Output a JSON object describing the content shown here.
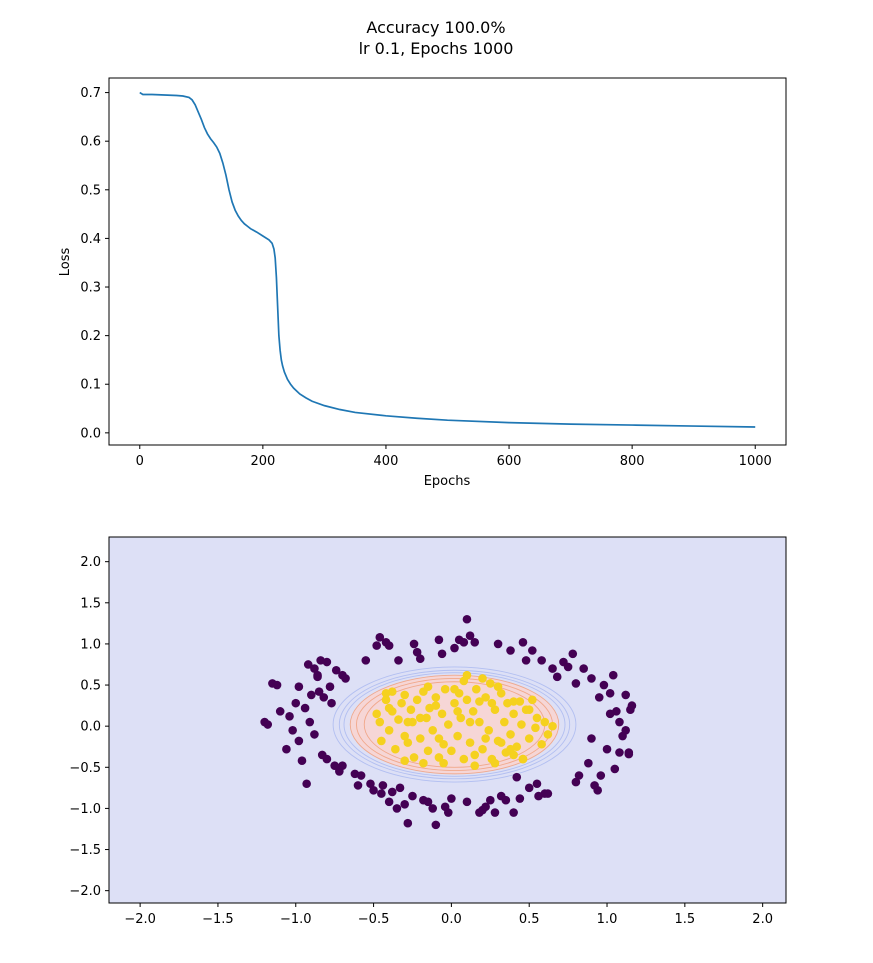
{
  "figure": {
    "title_line1": "Accuracy 100.0%",
    "title_line2": "lr 0.1, Epochs 1000"
  },
  "colors": {
    "loss_line": "#1f77b4",
    "background_region": "#dde0f6",
    "inner_region": "#f6d6d6",
    "contour_blue": "#aab9f0",
    "contour_red": "#f0a07e",
    "class0": "#440154",
    "class1": "#f5d11f"
  },
  "chart_data": [
    {
      "type": "line",
      "xlabel": "Epochs",
      "ylabel": "Loss",
      "xlim": [
        -50,
        1050
      ],
      "ylim": [
        -0.025,
        0.73
      ],
      "xticks": [
        0,
        200,
        400,
        600,
        800,
        1000
      ],
      "yticks": [
        0.0,
        0.1,
        0.2,
        0.3,
        0.4,
        0.5,
        0.6,
        0.7
      ],
      "grid": false,
      "series": [
        {
          "x": [
            0,
            5,
            20,
            40,
            60,
            70,
            80,
            85,
            90,
            95,
            100,
            105,
            110,
            115,
            120,
            125,
            130,
            135,
            140,
            145,
            150,
            155,
            160,
            165,
            170,
            175,
            180,
            190,
            200,
            210,
            215,
            218,
            220,
            222,
            224,
            226,
            228,
            230,
            232,
            235,
            240,
            245,
            250,
            260,
            270,
            280,
            300,
            325,
            350,
            400,
            450,
            500,
            600,
            700,
            800,
            900,
            1000
          ],
          "values": [
            0.7,
            0.696,
            0.696,
            0.695,
            0.694,
            0.693,
            0.69,
            0.685,
            0.675,
            0.66,
            0.645,
            0.628,
            0.615,
            0.605,
            0.597,
            0.588,
            0.575,
            0.555,
            0.53,
            0.5,
            0.475,
            0.458,
            0.446,
            0.437,
            0.43,
            0.425,
            0.42,
            0.413,
            0.405,
            0.397,
            0.39,
            0.378,
            0.36,
            0.32,
            0.26,
            0.2,
            0.17,
            0.15,
            0.138,
            0.125,
            0.11,
            0.1,
            0.092,
            0.08,
            0.072,
            0.065,
            0.056,
            0.048,
            0.042,
            0.035,
            0.03,
            0.026,
            0.021,
            0.018,
            0.016,
            0.014,
            0.012
          ]
        }
      ]
    },
    {
      "type": "scatter",
      "xlim": [
        -2.2,
        2.15
      ],
      "ylim": [
        -2.15,
        2.3
      ],
      "xticks": [
        -2.0,
        -1.5,
        -1.0,
        -0.5,
        0.0,
        0.5,
        1.0,
        1.5,
        2.0
      ],
      "yticks": [
        -2.0,
        -1.5,
        -1.0,
        -0.5,
        0.0,
        0.5,
        1.0,
        1.5,
        2.0
      ],
      "grid": false,
      "decision_boundary": {
        "center": [
          0.02,
          0.02
        ],
        "contours": [
          {
            "rx": 0.78,
            "ry": 0.7,
            "level": "outer"
          },
          {
            "rx": 0.74,
            "ry": 0.66,
            "level": "outer"
          },
          {
            "rx": 0.71,
            "ry": 0.63,
            "level": "outer"
          },
          {
            "rx": 0.67,
            "ry": 0.6,
            "level": "inner"
          },
          {
            "rx": 0.63,
            "ry": 0.56,
            "level": "inner"
          },
          {
            "rx": 0.58,
            "ry": 0.52,
            "level": "inner"
          }
        ]
      },
      "series": [
        {
          "label": 0,
          "points": [
            [
              -1.2,
              0.05
            ],
            [
              -1.15,
              0.52
            ],
            [
              -1.12,
              0.5
            ],
            [
              -1.1,
              0.18
            ],
            [
              -1.06,
              -0.28
            ],
            [
              -1.04,
              0.12
            ],
            [
              -1.02,
              -0.05
            ],
            [
              -1.0,
              0.28
            ],
            [
              -0.98,
              0.48
            ],
            [
              -0.98,
              -0.18
            ],
            [
              -0.96,
              -0.42
            ],
            [
              -0.94,
              0.22
            ],
            [
              -0.93,
              -0.7
            ],
            [
              -0.92,
              0.75
            ],
            [
              -0.91,
              0.05
            ],
            [
              -0.9,
              0.38
            ],
            [
              -0.88,
              0.7
            ],
            [
              -0.88,
              -0.1
            ],
            [
              -0.86,
              0.6
            ],
            [
              -0.85,
              0.42
            ],
            [
              -0.84,
              0.8
            ],
            [
              -0.83,
              -0.35
            ],
            [
              -0.82,
              0.35
            ],
            [
              -0.8,
              0.78
            ],
            [
              -0.8,
              -0.4
            ],
            [
              -0.78,
              0.48
            ],
            [
              -0.77,
              0.28
            ],
            [
              -0.75,
              -0.48
            ],
            [
              -0.74,
              0.68
            ],
            [
              -0.72,
              -0.55
            ],
            [
              -0.7,
              0.62
            ],
            [
              -0.7,
              -0.48
            ],
            [
              -0.68,
              0.58
            ],
            [
              -0.62,
              -0.58
            ],
            [
              -0.6,
              -0.72
            ],
            [
              -0.58,
              -0.6
            ],
            [
              -0.55,
              0.8
            ],
            [
              -0.52,
              -0.7
            ],
            [
              -0.5,
              -0.78
            ],
            [
              -0.48,
              0.98
            ],
            [
              -0.46,
              1.08
            ],
            [
              -0.45,
              -0.82
            ],
            [
              -0.44,
              -0.72
            ],
            [
              -0.42,
              1.02
            ],
            [
              -0.4,
              0.98
            ],
            [
              -0.4,
              -0.92
            ],
            [
              -0.38,
              -0.8
            ],
            [
              -0.35,
              -1.0
            ],
            [
              -0.34,
              0.8
            ],
            [
              -0.33,
              -0.75
            ],
            [
              -0.3,
              -0.95
            ],
            [
              -0.28,
              -1.18
            ],
            [
              -0.25,
              -0.85
            ],
            [
              -0.22,
              0.9
            ],
            [
              -0.2,
              0.82
            ],
            [
              -0.18,
              -0.9
            ],
            [
              -0.15,
              -0.92
            ],
            [
              -0.12,
              -1.0
            ],
            [
              -0.1,
              -1.2
            ],
            [
              -0.08,
              1.05
            ],
            [
              -0.06,
              0.88
            ],
            [
              -0.04,
              -0.98
            ],
            [
              -0.02,
              -1.05
            ],
            [
              0.0,
              -0.88
            ],
            [
              0.02,
              0.95
            ],
            [
              0.05,
              1.05
            ],
            [
              0.08,
              1.02
            ],
            [
              0.1,
              -0.92
            ],
            [
              0.12,
              1.1
            ],
            [
              0.15,
              1.02
            ],
            [
              0.18,
              -1.05
            ],
            [
              0.2,
              -1.02
            ],
            [
              0.22,
              -0.98
            ],
            [
              0.25,
              -0.9
            ],
            [
              0.28,
              -1.05
            ],
            [
              0.3,
              1.0
            ],
            [
              0.32,
              -0.85
            ],
            [
              0.35,
              -0.9
            ],
            [
              0.38,
              0.92
            ],
            [
              0.4,
              -1.05
            ],
            [
              0.42,
              -0.62
            ],
            [
              0.44,
              -0.88
            ],
            [
              0.46,
              1.02
            ],
            [
              0.48,
              0.8
            ],
            [
              0.5,
              -0.75
            ],
            [
              0.52,
              0.92
            ],
            [
              0.55,
              -0.7
            ],
            [
              0.58,
              0.8
            ],
            [
              0.6,
              -0.82
            ],
            [
              0.62,
              -0.82
            ],
            [
              0.65,
              0.7
            ],
            [
              0.68,
              0.6
            ],
            [
              0.72,
              0.78
            ],
            [
              0.75,
              0.72
            ],
            [
              0.78,
              0.88
            ],
            [
              0.8,
              0.52
            ],
            [
              0.8,
              -0.68
            ],
            [
              0.82,
              -0.6
            ],
            [
              0.85,
              0.7
            ],
            [
              0.88,
              -0.45
            ],
            [
              0.9,
              0.58
            ],
            [
              0.92,
              -0.72
            ],
            [
              0.94,
              -0.78
            ],
            [
              0.95,
              0.35
            ],
            [
              0.96,
              -0.6
            ],
            [
              0.98,
              0.5
            ],
            [
              1.0,
              -0.28
            ],
            [
              1.02,
              0.4
            ],
            [
              1.04,
              0.62
            ],
            [
              1.05,
              -0.52
            ],
            [
              1.06,
              0.18
            ],
            [
              1.08,
              0.05
            ],
            [
              1.1,
              -0.12
            ],
            [
              1.12,
              0.38
            ],
            [
              1.12,
              -0.05
            ],
            [
              1.14,
              -0.32
            ],
            [
              1.15,
              0.2
            ],
            [
              1.02,
              0.15
            ],
            [
              0.9,
              -0.15
            ],
            [
              -1.18,
              0.02
            ],
            [
              1.16,
              0.25
            ],
            [
              1.14,
              -0.34
            ],
            [
              1.08,
              -0.32
            ],
            [
              0.56,
              -0.85
            ],
            [
              -0.86,
              0.62
            ],
            [
              0.1,
              1.3
            ],
            [
              -0.24,
              1.0
            ]
          ]
        },
        {
          "label": 1,
          "points": [
            [
              -0.48,
              0.15
            ],
            [
              -0.46,
              0.05
            ],
            [
              -0.45,
              -0.18
            ],
            [
              -0.42,
              0.32
            ],
            [
              -0.4,
              -0.05
            ],
            [
              -0.38,
              0.42
            ],
            [
              -0.38,
              0.18
            ],
            [
              -0.36,
              -0.28
            ],
            [
              -0.34,
              0.08
            ],
            [
              -0.32,
              0.28
            ],
            [
              -0.3,
              -0.12
            ],
            [
              -0.3,
              0.38
            ],
            [
              -0.28,
              -0.2
            ],
            [
              -0.26,
              0.2
            ],
            [
              -0.25,
              0.05
            ],
            [
              -0.24,
              -0.38
            ],
            [
              -0.22,
              0.32
            ],
            [
              -0.2,
              -0.15
            ],
            [
              -0.18,
              0.42
            ],
            [
              -0.16,
              0.1
            ],
            [
              -0.15,
              -0.3
            ],
            [
              -0.14,
              0.22
            ],
            [
              -0.12,
              -0.05
            ],
            [
              -0.1,
              0.35
            ],
            [
              -0.08,
              -0.38
            ],
            [
              -0.06,
              0.15
            ],
            [
              -0.05,
              -0.22
            ],
            [
              -0.04,
              0.45
            ],
            [
              -0.02,
              0.02
            ],
            [
              0.0,
              -0.3
            ],
            [
              0.02,
              0.28
            ],
            [
              0.04,
              -0.12
            ],
            [
              0.05,
              0.4
            ],
            [
              0.06,
              0.1
            ],
            [
              0.08,
              -0.4
            ],
            [
              0.1,
              0.32
            ],
            [
              0.12,
              -0.2
            ],
            [
              0.14,
              0.18
            ],
            [
              0.15,
              -0.35
            ],
            [
              0.16,
              0.45
            ],
            [
              0.18,
              0.05
            ],
            [
              0.2,
              -0.28
            ],
            [
              0.22,
              0.35
            ],
            [
              0.24,
              -0.05
            ],
            [
              0.25,
              0.52
            ],
            [
              0.26,
              -0.4
            ],
            [
              0.28,
              0.2
            ],
            [
              0.3,
              -0.18
            ],
            [
              0.32,
              0.4
            ],
            [
              0.34,
              0.05
            ],
            [
              0.35,
              -0.32
            ],
            [
              0.36,
              0.28
            ],
            [
              0.38,
              -0.1
            ],
            [
              0.4,
              0.15
            ],
            [
              0.42,
              -0.25
            ],
            [
              0.44,
              0.3
            ],
            [
              0.45,
              0.02
            ],
            [
              0.46,
              -0.4
            ],
            [
              0.48,
              0.2
            ],
            [
              0.5,
              -0.15
            ],
            [
              0.52,
              0.32
            ],
            [
              0.54,
              -0.02
            ],
            [
              0.55,
              0.1
            ],
            [
              0.58,
              -0.22
            ],
            [
              0.6,
              0.05
            ],
            [
              0.62,
              -0.1
            ],
            [
              0.65,
              0.0
            ],
            [
              -0.42,
              0.4
            ],
            [
              -0.2,
              0.1
            ],
            [
              0.1,
              0.62
            ],
            [
              0.08,
              0.55
            ],
            [
              -0.15,
              0.48
            ],
            [
              0.2,
              0.58
            ],
            [
              0.3,
              0.48
            ],
            [
              0.4,
              -0.35
            ],
            [
              0.38,
              -0.28
            ],
            [
              -0.05,
              -0.45
            ],
            [
              0.15,
              -0.48
            ],
            [
              0.28,
              -0.45
            ],
            [
              0.46,
              -0.4
            ],
            [
              -0.3,
              -0.42
            ],
            [
              -0.18,
              -0.45
            ],
            [
              0.02,
              0.45
            ],
            [
              0.18,
              0.3
            ],
            [
              -0.28,
              0.05
            ],
            [
              0.32,
              -0.2
            ],
            [
              0.12,
              0.05
            ],
            [
              -0.4,
              0.22
            ],
            [
              0.5,
              0.2
            ],
            [
              -0.1,
              0.25
            ],
            [
              0.22,
              -0.15
            ],
            [
              0.26,
              0.28
            ],
            [
              -0.08,
              -0.15
            ],
            [
              0.4,
              0.3
            ],
            [
              0.04,
              0.18
            ]
          ]
        }
      ]
    }
  ]
}
